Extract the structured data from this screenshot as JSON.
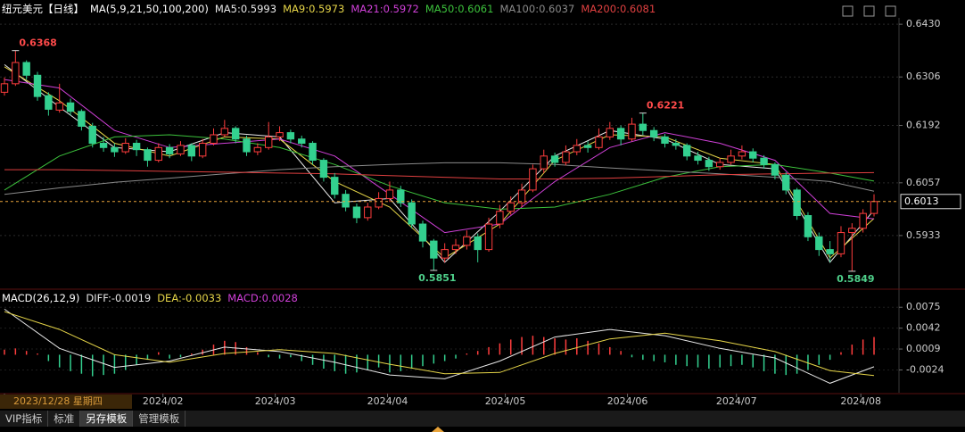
{
  "chart_data": [
    {
      "type": "candlestick",
      "title": "纽元美元【日线】",
      "subtitle": "MA(5,9,21,50,100,200)",
      "up_color": "#ff3d3d",
      "down_color": "#33d08f",
      "ylim": [
        0.5811,
        0.6445
      ],
      "yticks": [
        {
          "value": 0.643,
          "label": "0.6430"
        },
        0.6306,
        0.6192,
        0.6057,
        0.5933
      ],
      "grid": true,
      "xticks": [
        {
          "value": 0,
          "label": "2023/12/28 星期四"
        },
        {
          "value": 14.4,
          "label": "2024/02"
        },
        {
          "value": 24.6,
          "label": "2024/03"
        },
        {
          "value": 34.8,
          "label": "2024/04"
        },
        {
          "value": 45.5,
          "label": "2024/05"
        },
        {
          "value": 56.6,
          "label": "2024/06"
        },
        {
          "value": 66.5,
          "label": "2024/07"
        },
        {
          "value": 77.8,
          "label": "2024/08"
        }
      ],
      "categories": [
        null,
        null,
        null,
        null,
        null,
        null,
        null,
        null,
        null,
        null,
        null,
        null,
        null,
        null,
        null,
        null,
        null,
        null,
        null,
        null,
        null,
        null,
        null,
        null,
        null,
        null,
        null,
        null,
        null,
        null,
        null,
        null,
        null,
        null,
        null,
        null,
        null,
        null,
        null,
        null,
        null,
        null,
        null,
        null,
        null,
        null,
        null,
        null,
        null,
        null,
        null,
        null,
        null,
        null,
        null,
        null,
        null,
        null,
        null,
        null,
        null,
        null,
        null,
        null,
        null,
        null,
        null,
        null,
        null,
        null,
        null,
        null,
        null,
        null,
        null,
        null,
        null,
        null,
        null,
        null
      ],
      "candles": [
        [
          0.627,
          0.6305,
          0.6262,
          0.629
        ],
        [
          0.629,
          0.6368,
          0.6285,
          0.634
        ],
        [
          0.634,
          0.6345,
          0.63,
          0.631
        ],
        [
          0.631,
          0.6318,
          0.625,
          0.626
        ],
        [
          0.6262,
          0.627,
          0.6215,
          0.623
        ],
        [
          0.6228,
          0.629,
          0.6222,
          0.6245
        ],
        [
          0.6245,
          0.6255,
          0.6215,
          0.6225
        ],
        [
          0.6225,
          0.623,
          0.618,
          0.619
        ],
        [
          0.619,
          0.6198,
          0.614,
          0.615
        ],
        [
          0.615,
          0.6165,
          0.613,
          0.614
        ],
        [
          0.614,
          0.615,
          0.6118,
          0.613
        ],
        [
          0.613,
          0.6162,
          0.6125,
          0.615
        ],
        [
          0.615,
          0.6158,
          0.612,
          0.6135
        ],
        [
          0.6135,
          0.614,
          0.6095,
          0.611
        ],
        [
          0.611,
          0.615,
          0.6105,
          0.614
        ],
        [
          0.614,
          0.6148,
          0.6115,
          0.6125
        ],
        [
          0.6125,
          0.6155,
          0.612,
          0.6145
        ],
        [
          0.6145,
          0.615,
          0.6108,
          0.612
        ],
        [
          0.612,
          0.616,
          0.6115,
          0.615
        ],
        [
          0.615,
          0.6185,
          0.6145,
          0.617
        ],
        [
          0.617,
          0.6205,
          0.6165,
          0.6185
        ],
        [
          0.6185,
          0.619,
          0.615,
          0.616
        ],
        [
          0.616,
          0.6168,
          0.612,
          0.613
        ],
        [
          0.613,
          0.615,
          0.6122,
          0.614
        ],
        [
          0.614,
          0.62,
          0.6135,
          0.6165
        ],
        [
          0.6165,
          0.619,
          0.6155,
          0.6175
        ],
        [
          0.6175,
          0.6182,
          0.615,
          0.616
        ],
        [
          0.616,
          0.6168,
          0.614,
          0.615
        ],
        [
          0.615,
          0.6155,
          0.61,
          0.611
        ],
        [
          0.611,
          0.6115,
          0.606,
          0.607
        ],
        [
          0.607,
          0.608,
          0.602,
          0.603
        ],
        [
          0.603,
          0.604,
          0.599,
          0.6
        ],
        [
          0.6,
          0.6008,
          0.5962,
          0.5975
        ],
        [
          0.5975,
          0.601,
          0.5968,
          0.6
        ],
        [
          0.6,
          0.6035,
          0.5995,
          0.602
        ],
        [
          0.602,
          0.606,
          0.6012,
          0.604
        ],
        [
          0.604,
          0.605,
          0.6,
          0.601
        ],
        [
          0.601,
          0.6018,
          0.595,
          0.596
        ],
        [
          0.596,
          0.5968,
          0.5905,
          0.592
        ],
        [
          0.592,
          0.5925,
          0.5851,
          0.588
        ],
        [
          0.588,
          0.5915,
          0.587,
          0.59
        ],
        [
          0.59,
          0.5925,
          0.589,
          0.591
        ],
        [
          0.591,
          0.5945,
          0.59,
          0.593
        ],
        [
          0.593,
          0.5938,
          0.587,
          0.59
        ],
        [
          0.59,
          0.5975,
          0.5895,
          0.596
        ],
        [
          0.596,
          0.6005,
          0.595,
          0.599
        ],
        [
          0.599,
          0.6025,
          0.5982,
          0.601
        ],
        [
          0.601,
          0.6055,
          0.6,
          0.604
        ],
        [
          0.604,
          0.61,
          0.6035,
          0.609
        ],
        [
          0.609,
          0.6135,
          0.608,
          0.612
        ],
        [
          0.612,
          0.6128,
          0.6095,
          0.6105
        ],
        [
          0.6105,
          0.6145,
          0.6098,
          0.613
        ],
        [
          0.613,
          0.616,
          0.6122,
          0.6145
        ],
        [
          0.6145,
          0.6155,
          0.6128,
          0.614
        ],
        [
          0.614,
          0.6185,
          0.6135,
          0.6165
        ],
        [
          0.6165,
          0.62,
          0.6158,
          0.6185
        ],
        [
          0.6185,
          0.6192,
          0.6145,
          0.616
        ],
        [
          0.616,
          0.621,
          0.6155,
          0.6195
        ],
        [
          0.6195,
          0.6221,
          0.617,
          0.618
        ],
        [
          0.618,
          0.6188,
          0.6155,
          0.6165
        ],
        [
          0.6165,
          0.6172,
          0.614,
          0.615
        ],
        [
          0.615,
          0.616,
          0.6135,
          0.6145
        ],
        [
          0.6145,
          0.615,
          0.611,
          0.612
        ],
        [
          0.612,
          0.613,
          0.61,
          0.611
        ],
        [
          0.611,
          0.6118,
          0.6085,
          0.6095
        ],
        [
          0.6095,
          0.6115,
          0.6088,
          0.6105
        ],
        [
          0.6105,
          0.6135,
          0.61,
          0.612
        ],
        [
          0.612,
          0.6145,
          0.6112,
          0.613
        ],
        [
          0.613,
          0.6138,
          0.6105,
          0.6115
        ],
        [
          0.6115,
          0.6122,
          0.609,
          0.61
        ],
        [
          0.61,
          0.6105,
          0.6065,
          0.6075
        ],
        [
          0.6075,
          0.6082,
          0.603,
          0.604
        ],
        [
          0.604,
          0.6045,
          0.597,
          0.598
        ],
        [
          0.598,
          0.5988,
          0.592,
          0.593
        ],
        [
          0.593,
          0.594,
          0.5885,
          0.59
        ],
        [
          0.59,
          0.592,
          0.587,
          0.589
        ],
        [
          0.589,
          0.5955,
          0.5882,
          0.594
        ],
        [
          0.594,
          0.5962,
          0.5849,
          0.595
        ],
        [
          0.595,
          0.5995,
          0.594,
          0.5985
        ],
        [
          0.5985,
          0.603,
          0.5978,
          0.6013
        ]
      ],
      "annotations": [
        0.6368,
        0.6221,
        0.5851,
        0.5849
      ],
      "series": [
        {
          "name": "MA5",
          "color": "#e8e8e8",
          "x": [
            0,
            5,
            10,
            15,
            20,
            25,
            30,
            35,
            40,
            45,
            50,
            55,
            60,
            65,
            70,
            75,
            79
          ],
          "values": [
            0.6335,
            0.6235,
            0.614,
            0.613,
            0.6175,
            0.6165,
            0.601,
            0.602,
            0.587,
            0.599,
            0.612,
            0.618,
            0.616,
            0.61,
            0.609,
            0.587,
            0.5993
          ]
        },
        {
          "name": "MA9",
          "color": "#e6d548",
          "x": [
            0,
            5,
            10,
            15,
            20,
            25,
            30,
            35,
            40,
            45,
            50,
            55,
            60,
            65,
            70,
            75,
            79
          ],
          "values": [
            0.633,
            0.625,
            0.615,
            0.612,
            0.6165,
            0.616,
            0.606,
            0.6,
            0.588,
            0.596,
            0.611,
            0.617,
            0.6165,
            0.6115,
            0.61,
            0.588,
            0.5973
          ]
        },
        {
          "name": "MA21",
          "color": "#d040d8",
          "x": [
            0,
            5,
            10,
            15,
            20,
            25,
            30,
            35,
            40,
            45,
            50,
            55,
            60,
            65,
            70,
            75,
            79
          ],
          "values": [
            0.63,
            0.628,
            0.618,
            0.614,
            0.615,
            0.616,
            0.612,
            0.603,
            0.594,
            0.596,
            0.606,
            0.614,
            0.6175,
            0.615,
            0.611,
            0.5985,
            0.5972
          ]
        },
        {
          "name": "MA50",
          "color": "#3cc23c",
          "x": [
            0,
            5,
            10,
            15,
            20,
            25,
            30,
            35,
            40,
            45,
            50,
            55,
            60,
            65,
            70,
            75,
            79
          ],
          "values": [
            0.604,
            0.612,
            0.6165,
            0.617,
            0.616,
            0.614,
            0.61,
            0.605,
            0.601,
            0.5995,
            0.6,
            0.603,
            0.607,
            0.6095,
            0.61,
            0.608,
            0.6061
          ]
        },
        {
          "name": "MA100",
          "color": "#8a8a8a",
          "x": [
            0,
            5,
            10,
            15,
            20,
            25,
            30,
            35,
            40,
            45,
            50,
            55,
            60,
            65,
            70,
            75,
            79
          ],
          "values": [
            0.603,
            0.6045,
            0.6058,
            0.6068,
            0.6078,
            0.6088,
            0.6095,
            0.61,
            0.6104,
            0.6104,
            0.61,
            0.6092,
            0.6085,
            0.6078,
            0.607,
            0.606,
            0.6037
          ]
        },
        {
          "name": "MA200",
          "color": "#e04040",
          "x": [
            0,
            5,
            10,
            15,
            20,
            25,
            30,
            35,
            40,
            45,
            50,
            55,
            60,
            65,
            70,
            75,
            79
          ],
          "values": [
            0.6088,
            0.6088,
            0.6086,
            0.6084,
            0.6082,
            0.608,
            0.6078,
            0.6074,
            0.607,
            0.6066,
            0.6066,
            0.6068,
            0.6072,
            0.6076,
            0.6078,
            0.608,
            0.6081
          ]
        }
      ]
    },
    {
      "type": "macd",
      "title": "MACD(26,12,9)",
      "ylim": [
        -0.006,
        0.0088
      ],
      "yticks": [
        0.0075,
        0.0042,
        0.0009,
        -0.0024
      ],
      "histogram": {
        "name": "MACD",
        "color": "#d040d8",
        "up_color": "#ff3d3d",
        "down_color": "#33d08f",
        "values": [
          0.0008,
          0.001,
          0.0006,
          0.0002,
          -0.001,
          -0.002,
          -0.0026,
          -0.003,
          -0.0034,
          -0.0032,
          -0.003,
          -0.0024,
          -0.0016,
          -0.0008,
          0.0004,
          -0.0006,
          -0.0004,
          0.0002,
          0.0008,
          0.0016,
          0.0022,
          0.002,
          0.0012,
          0.0004,
          -0.0004,
          -0.0006,
          -0.0004,
          -0.001,
          -0.0016,
          -0.0022,
          -0.0026,
          -0.003,
          -0.0028,
          -0.0024,
          -0.002,
          -0.0028,
          -0.0026,
          -0.0022,
          -0.0018,
          -0.0014,
          -0.001,
          -0.0006,
          0.0002,
          0.0006,
          0.0012,
          0.0018,
          0.0024,
          0.0028,
          0.003,
          0.0028,
          0.0026,
          0.0024,
          0.0026,
          0.0022,
          0.0018,
          0.0012,
          0.0006,
          -0.0004,
          -0.0008,
          -0.001,
          -0.0012,
          -0.0016,
          -0.0018,
          -0.002,
          -0.0022,
          -0.002,
          -0.0018,
          -0.0016,
          -0.002,
          -0.0026,
          -0.003,
          -0.0032,
          -0.003,
          -0.0024,
          -0.0016,
          -0.0008,
          0.0004,
          0.0016,
          0.0024,
          0.0028
        ]
      },
      "series": [
        {
          "name": "DIFF",
          "color": "#e8e8e8",
          "x": [
            0,
            5,
            10,
            15,
            20,
            25,
            30,
            35,
            40,
            45,
            50,
            55,
            60,
            65,
            70,
            75,
            79
          ],
          "values": [
            0.0072,
            0.001,
            -0.002,
            -0.001,
            0.0012,
            0.0005,
            -0.0012,
            -0.0032,
            -0.0038,
            -0.001,
            0.0028,
            0.004,
            0.003,
            0.001,
            -0.0005,
            -0.0045,
            -0.0019
          ]
        },
        {
          "name": "DEA",
          "color": "#e6d548",
          "x": [
            0,
            5,
            10,
            15,
            20,
            25,
            30,
            35,
            40,
            45,
            50,
            55,
            60,
            65,
            70,
            75,
            79
          ],
          "values": [
            0.0068,
            0.004,
            0,
            -0.0012,
            0.0002,
            0.0008,
            0.0002,
            -0.0015,
            -0.003,
            -0.0028,
            0.0002,
            0.0025,
            0.0034,
            0.0022,
            0.0005,
            -0.0025,
            -0.0033
          ]
        }
      ]
    }
  ],
  "tabs": [
    "VIP指标",
    "标准",
    "另存模板",
    "管理模板"
  ]
}
